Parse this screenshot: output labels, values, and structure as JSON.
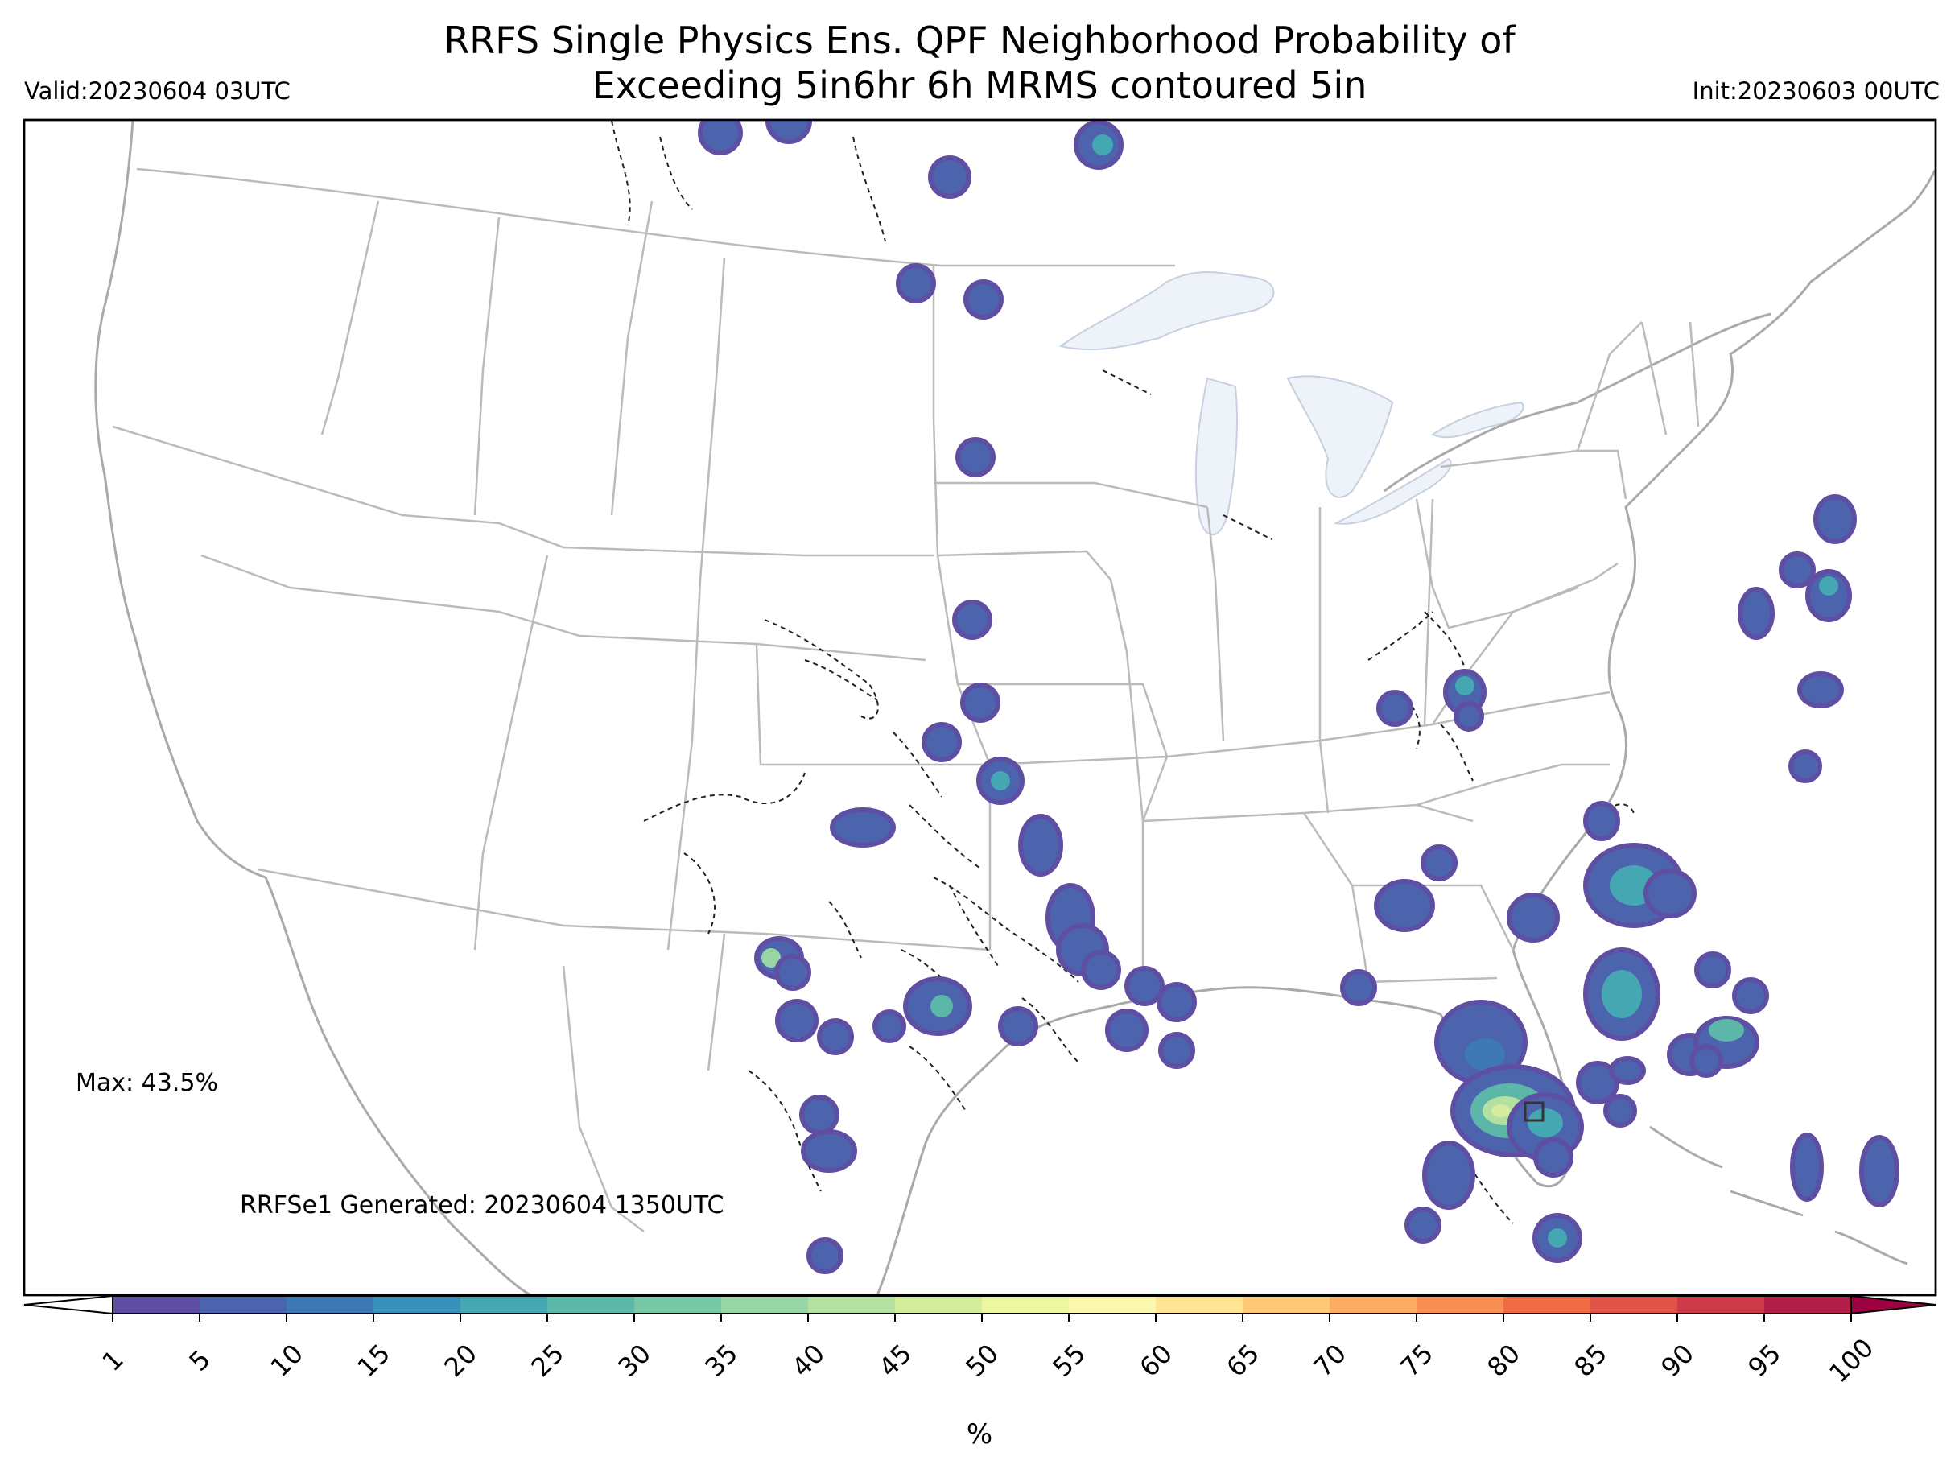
{
  "title": {
    "line1": "RRFS Single Physics Ens. QPF Neighborhood Probability of",
    "line2": "Exceeding 5in6hr 6h MRMS contoured 5in"
  },
  "valid_label": "Valid:20230604 03UTC",
  "init_label": "Init:20230603 00UTC",
  "max_label": "Max: 43.5%",
  "generated_label": "RRFSe1 Generated: 20230604 1350UTC",
  "colorbar": {
    "units": "%",
    "ticks": [
      "1",
      "5",
      "10",
      "15",
      "20",
      "25",
      "30",
      "35",
      "40",
      "45",
      "50",
      "55",
      "60",
      "65",
      "70",
      "75",
      "80",
      "85",
      "90",
      "95",
      "100"
    ],
    "colors": [
      "#5e4fa2",
      "#4c63ad",
      "#3f79b5",
      "#3791ba",
      "#45a7b1",
      "#5cb7a9",
      "#77c6a6",
      "#98d5a4",
      "#b4e0a2",
      "#d3ed9c",
      "#ecf7a1",
      "#fbf8b0",
      "#fee596",
      "#fdc976",
      "#fcac63",
      "#f88e54",
      "#f06c45",
      "#df5348",
      "#cd3b4a",
      "#b11f48",
      "#9e0142"
    ]
  },
  "map_colors": {
    "land_border": "#bbbbbb",
    "coastline": "#aaaaaa",
    "lakes": "#eef2f9",
    "low_prob": "#4c63ad",
    "edge_prob": "#5e4fa2"
  },
  "probability_blobs": [
    {
      "lon_lat": "central-florida",
      "max_percent": 43.5
    },
    {
      "lon_lat": "west-texas",
      "max_percent": 30
    }
  ],
  "marker": "square marker near central Florida"
}
